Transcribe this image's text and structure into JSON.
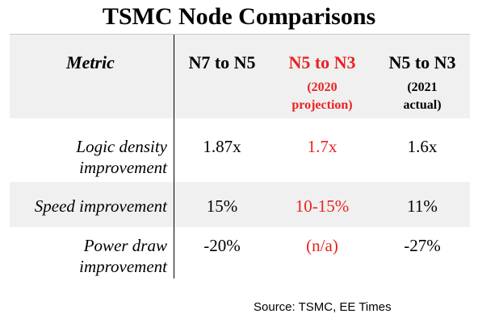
{
  "title": "TSMC Node Comparisons",
  "table": {
    "metric_header": "Metric",
    "columns": [
      {
        "label": "N7 to N5",
        "sub": ""
      },
      {
        "label": "N5 to N3",
        "sub_line1": "(2020",
        "sub_line2": "projection)"
      },
      {
        "label": "N5 to N3",
        "sub_line1": "(2021",
        "sub_line2": "actual)"
      }
    ],
    "rows": [
      {
        "label_line1": "Logic density",
        "label_line2": "improvement",
        "values": [
          "1.87x",
          "1.7x",
          "1.6x"
        ]
      },
      {
        "label_line1": "Speed improvement",
        "values": [
          "15%",
          "10-15%",
          "11%"
        ]
      },
      {
        "label_line1": "Power draw",
        "label_line2": "improvement",
        "values": [
          "-20%",
          "(n/a)",
          "-27%"
        ]
      }
    ]
  },
  "source": "Source: TSMC, EE Times",
  "colors": {
    "highlight": "#e8231f",
    "band": "#f0f0f0",
    "text": "#000000"
  }
}
